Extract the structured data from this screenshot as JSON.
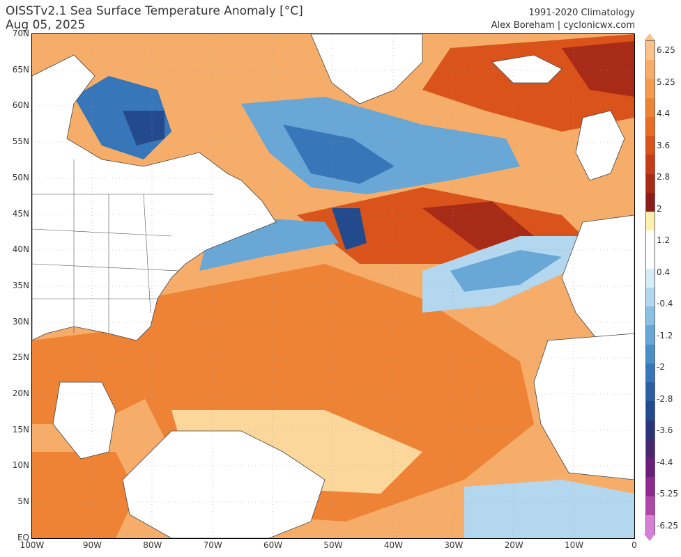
{
  "header": {
    "title_line1": "OISSTv2.1 Sea Surface Temperature Anomaly [°C]",
    "title_line2": "Aug 05, 2025",
    "right_line1": "1991-2020 Climatology",
    "right_line2": "Alex Boreham | cyclonicwx.com"
  },
  "axes": {
    "lat_labels": [
      "70N",
      "65N",
      "60N",
      "55N",
      "50N",
      "45N",
      "40N",
      "35N",
      "30N",
      "25N",
      "20N",
      "15N",
      "10N",
      "5N",
      "EQ"
    ],
    "lon_labels": [
      "100W",
      "90W",
      "80W",
      "70W",
      "60W",
      "50W",
      "40W",
      "30W",
      "20W",
      "10W",
      "0"
    ]
  },
  "colorbar": {
    "labels": [
      "6.25",
      "5.25",
      "4.4",
      "3.6",
      "2.8",
      "2",
      "1.2",
      "0.4",
      "-0.4",
      "-1.2",
      "-2",
      "-2.8",
      "-3.6",
      "-4.4",
      "-5.25",
      "-6.25"
    ],
    "colors": [
      "#f9c28a",
      "#f6ad6a",
      "#f39a4f",
      "#ee8336",
      "#e86d25",
      "#d9531a",
      "#c43d16",
      "#a82b17",
      "#8a1e1a",
      "#fef1b0",
      "#ffffff",
      "#ffffff",
      "#d6ecf7",
      "#b3d7ee",
      "#8cc0e3",
      "#68a7d6",
      "#4c8ec8",
      "#3776b8",
      "#2b5ea3",
      "#234a8c",
      "#2c357a",
      "#48286e",
      "#6b1f7a",
      "#8e2a8e",
      "#b046a8",
      "#d580d5"
    ]
  },
  "map": {
    "colors": {
      "warm_light": "#fcd79c",
      "warm": "#f6ad6a",
      "warm_med": "#ee8336",
      "warm_strong": "#d9531a",
      "warm_deep": "#a82b17",
      "cool_light": "#b3d7ee",
      "cool": "#68a7d6",
      "cool_strong": "#3776b8",
      "cool_deep": "#234a8c",
      "land": "#ffffff",
      "border": "#555555"
    }
  }
}
